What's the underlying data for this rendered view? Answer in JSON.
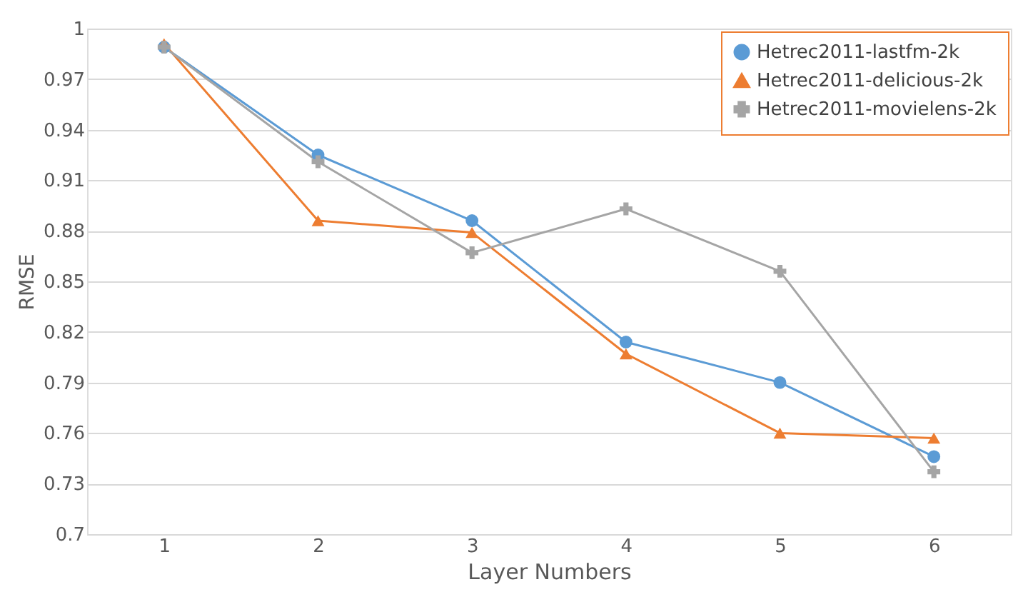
{
  "chart_data": {
    "type": "line",
    "xlabel": "Layer Numbers",
    "ylabel": "RMSE",
    "categories": [
      "1",
      "2",
      "3",
      "4",
      "5",
      "6"
    ],
    "series": [
      {
        "name": "Hetrec2011-lastfm-2k",
        "color": "#5b9bd5",
        "marker": "circle",
        "values": [
          0.989,
          0.925,
          0.886,
          0.814,
          0.79,
          0.746
        ]
      },
      {
        "name": "Hetrec2011-delicious-2k",
        "color": "#ed7d31",
        "marker": "triangle",
        "values": [
          0.991,
          0.886,
          0.879,
          0.807,
          0.76,
          0.757
        ]
      },
      {
        "name": "Hetrec2011-movielens-2k",
        "color": "#a5a5a5",
        "marker": "cross",
        "values": [
          0.989,
          0.921,
          0.867,
          0.893,
          0.856,
          0.737
        ]
      }
    ],
    "ylim": [
      0.7,
      1
    ],
    "yticks": [
      0.7,
      0.73,
      0.76,
      0.79,
      0.82,
      0.85,
      0.88,
      0.91,
      0.94,
      0.97,
      1
    ],
    "grid": "y",
    "legend": "top right",
    "line_style": "solid"
  }
}
